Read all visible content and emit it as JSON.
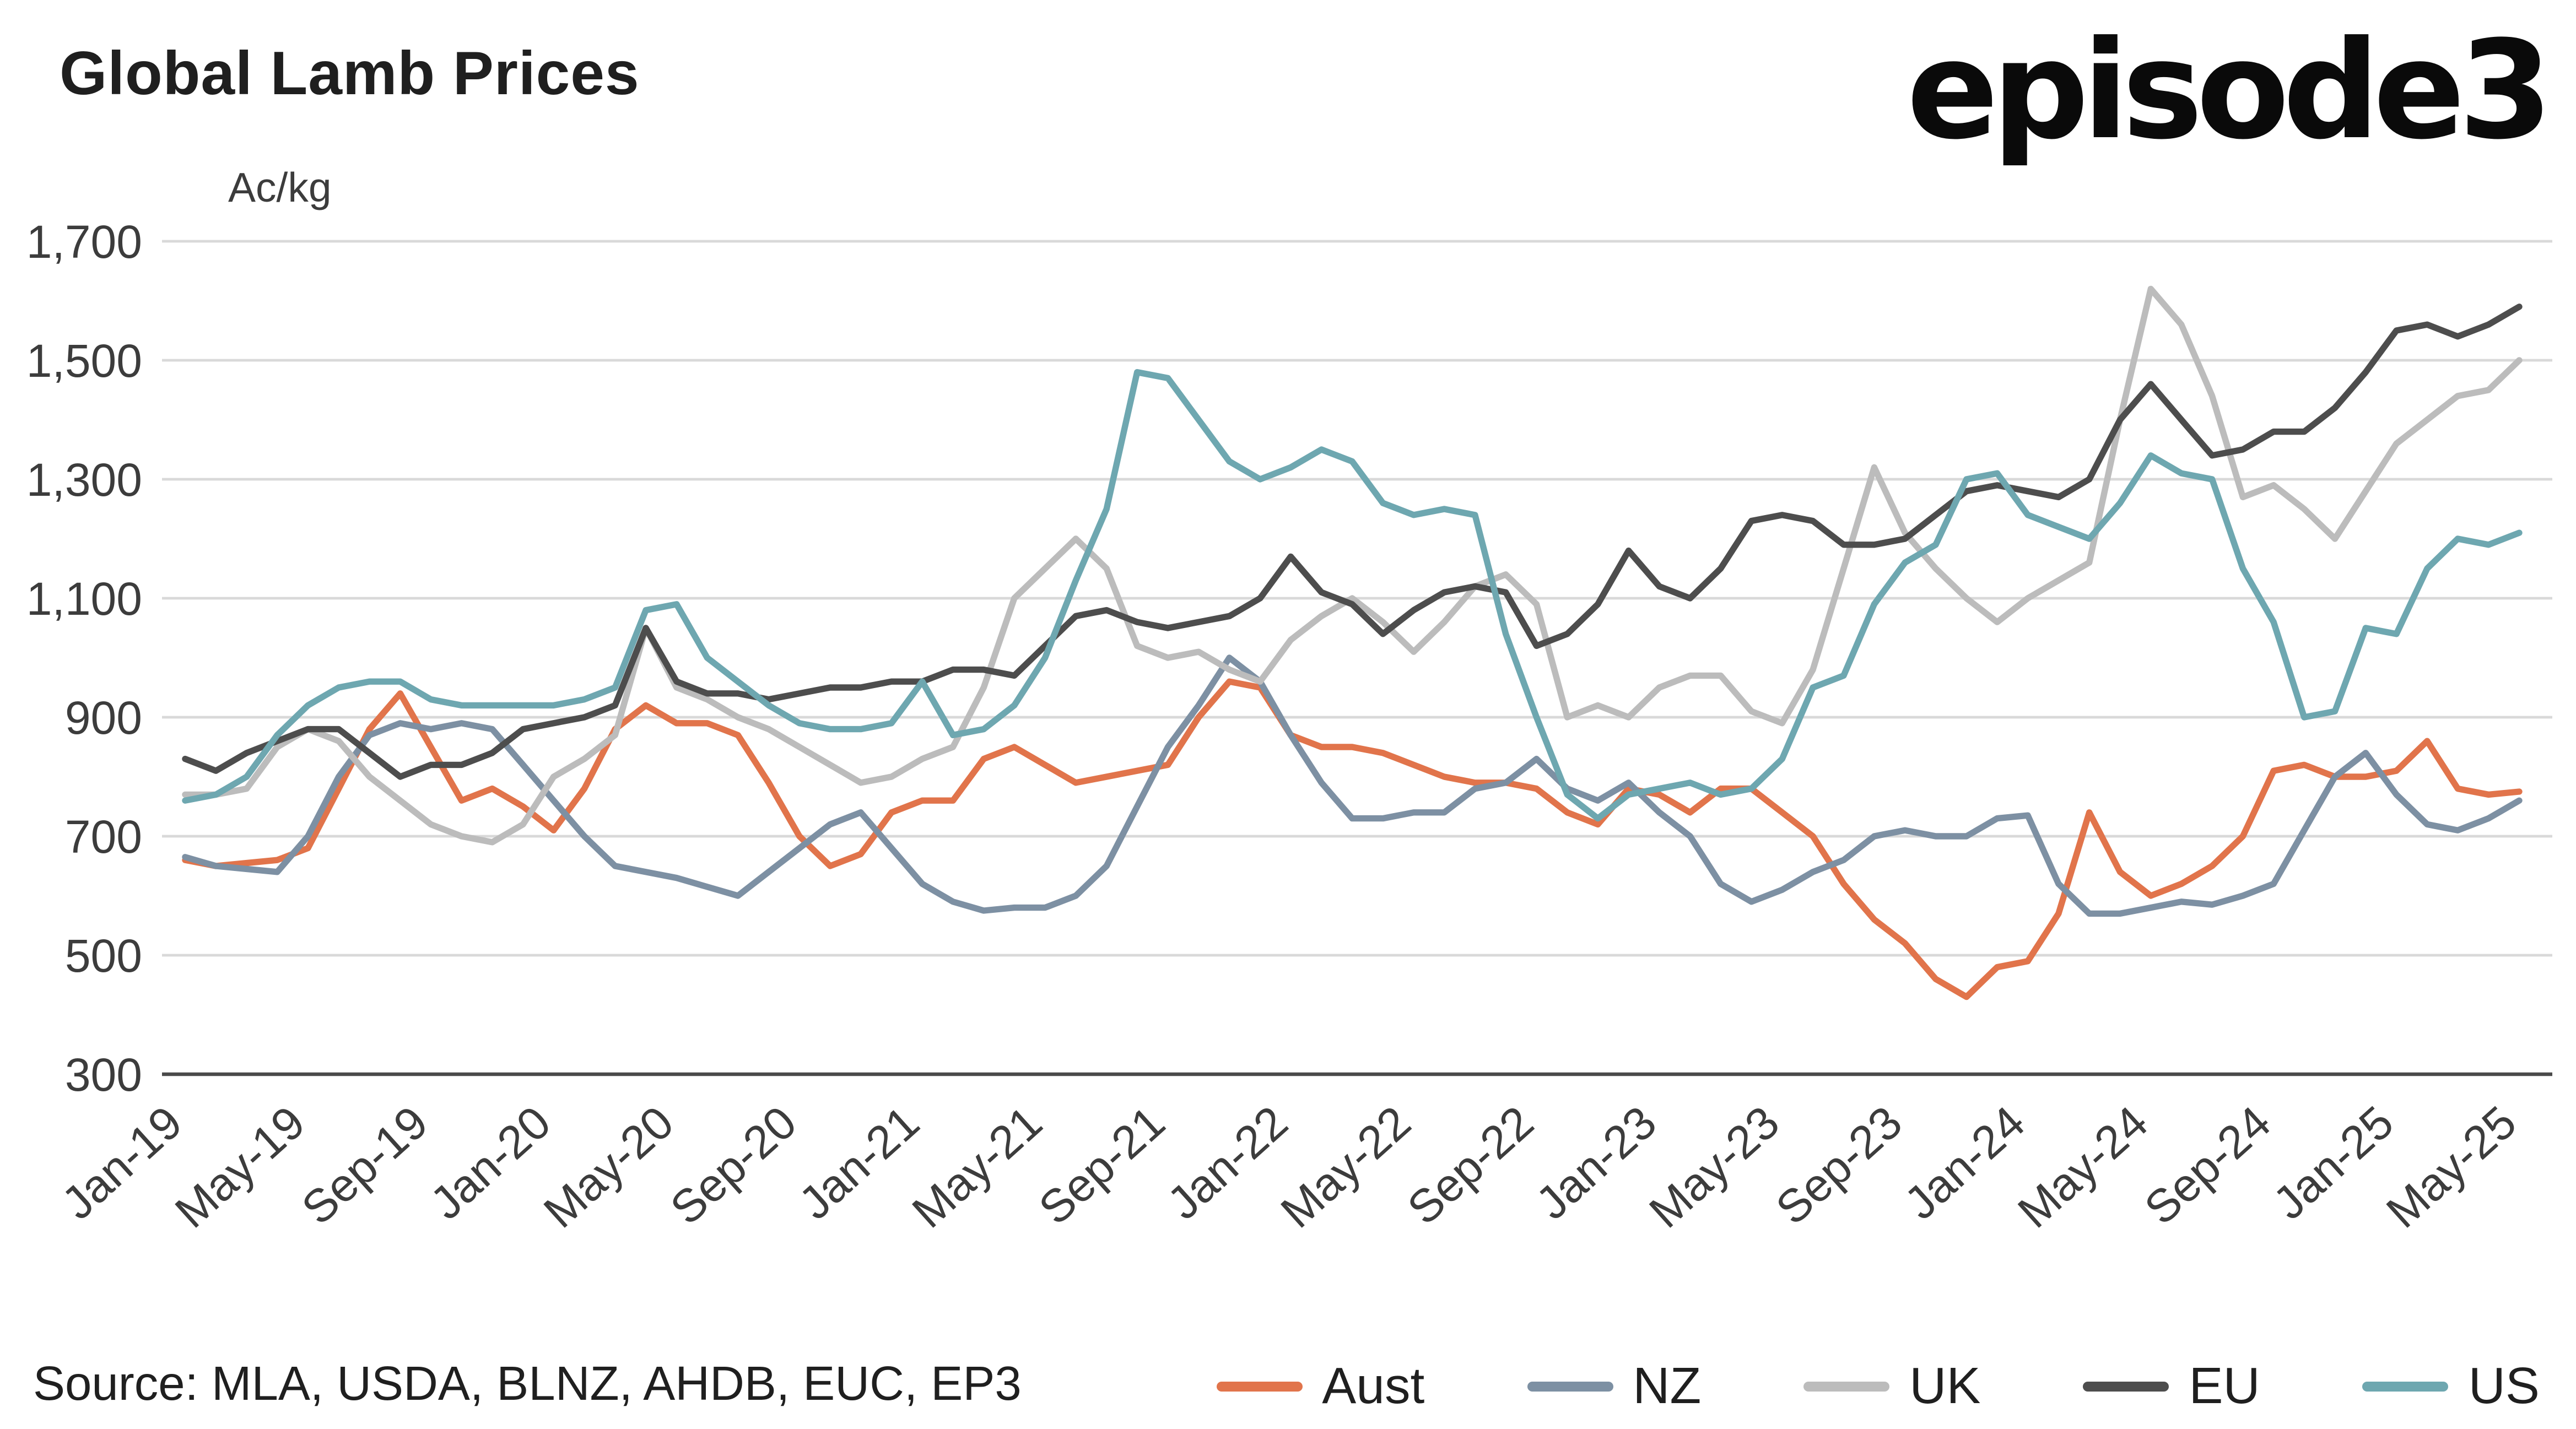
{
  "header": {
    "title": "Global Lamb Prices",
    "logo": "episode3"
  },
  "footer": {
    "source": "Source: MLA, USDA, BLNZ, AHDB, EUC, EP3"
  },
  "chart_data": {
    "type": "line",
    "title": "Global Lamb Prices",
    "ylabel": "Ac/kg",
    "ylim": [
      300,
      1700
    ],
    "yticks": [
      300,
      500,
      700,
      900,
      1100,
      1300,
      1500,
      1700
    ],
    "ytick_labels": [
      "300",
      "500",
      "700",
      "900",
      "1,100",
      "1,300",
      "1,500",
      "1,700"
    ],
    "grid": "horizontal",
    "legend_position": "bottom",
    "xtick_every": 4,
    "x_labels": [
      "Jan-19",
      "Feb-19",
      "Mar-19",
      "Apr-19",
      "May-19",
      "Jun-19",
      "Jul-19",
      "Aug-19",
      "Sep-19",
      "Oct-19",
      "Nov-19",
      "Dec-19",
      "Jan-20",
      "Feb-20",
      "Mar-20",
      "Apr-20",
      "May-20",
      "Jun-20",
      "Jul-20",
      "Aug-20",
      "Sep-20",
      "Oct-20",
      "Nov-20",
      "Dec-20",
      "Jan-21",
      "Feb-21",
      "Mar-21",
      "Apr-21",
      "May-21",
      "Jun-21",
      "Jul-21",
      "Aug-21",
      "Sep-21",
      "Oct-21",
      "Nov-21",
      "Dec-21",
      "Jan-22",
      "Feb-22",
      "Mar-22",
      "Apr-22",
      "May-22",
      "Jun-22",
      "Jul-22",
      "Aug-22",
      "Sep-22",
      "Oct-22",
      "Nov-22",
      "Dec-22",
      "Jan-23",
      "Feb-23",
      "Mar-23",
      "Apr-23",
      "May-23",
      "Jun-23",
      "Jul-23",
      "Aug-23",
      "Sep-23",
      "Oct-23",
      "Nov-23",
      "Dec-23",
      "Jan-24",
      "Feb-24",
      "Mar-24",
      "Apr-24",
      "May-24",
      "Jun-24",
      "Jul-24",
      "Aug-24",
      "Sep-24",
      "Oct-24",
      "Nov-24",
      "Dec-24",
      "Jan-25",
      "Feb-25",
      "Mar-25",
      "Apr-25",
      "May-25"
    ],
    "series": [
      {
        "name": "Aust",
        "color": "#E1744B",
        "values": [
          660,
          650,
          655,
          660,
          680,
          780,
          880,
          940,
          850,
          760,
          780,
          750,
          710,
          780,
          880,
          920,
          890,
          890,
          870,
          790,
          700,
          650,
          670,
          740,
          760,
          760,
          830,
          850,
          820,
          790,
          800,
          810,
          820,
          900,
          960,
          950,
          870,
          850,
          850,
          840,
          820,
          800,
          790,
          790,
          780,
          740,
          720,
          780,
          770,
          740,
          780,
          780,
          740,
          700,
          620,
          560,
          520,
          460,
          430,
          480,
          490,
          570,
          740,
          640,
          600,
          620,
          650,
          700,
          810,
          820,
          800,
          800,
          810,
          860,
          780,
          770,
          775
        ]
      },
      {
        "name": "NZ",
        "color": "#7D90A3",
        "values": [
          665,
          650,
          645,
          640,
          700,
          800,
          870,
          890,
          880,
          890,
          880,
          820,
          760,
          700,
          650,
          640,
          630,
          615,
          600,
          640,
          680,
          720,
          740,
          680,
          620,
          590,
          575,
          580,
          580,
          600,
          650,
          750,
          850,
          920,
          1000,
          960,
          870,
          790,
          730,
          730,
          740,
          740,
          780,
          790,
          830,
          780,
          760,
          790,
          740,
          700,
          620,
          590,
          610,
          640,
          660,
          700,
          710,
          700,
          700,
          730,
          735,
          620,
          570,
          570,
          580,
          590,
          585,
          600,
          620,
          710,
          800,
          840,
          770,
          720,
          710,
          730,
          760
        ]
      },
      {
        "name": "UK",
        "color": "#BCBCBC",
        "values": [
          770,
          770,
          780,
          850,
          880,
          860,
          800,
          760,
          720,
          700,
          690,
          720,
          800,
          830,
          870,
          1050,
          950,
          930,
          900,
          880,
          850,
          820,
          790,
          800,
          830,
          850,
          950,
          1100,
          1150,
          1200,
          1150,
          1020,
          1000,
          1010,
          980,
          960,
          1030,
          1070,
          1100,
          1060,
          1010,
          1060,
          1120,
          1140,
          1090,
          900,
          920,
          900,
          950,
          970,
          970,
          910,
          890,
          980,
          1150,
          1320,
          1210,
          1150,
          1100,
          1060,
          1100,
          1130,
          1160,
          1400,
          1620,
          1560,
          1440,
          1270,
          1290,
          1250,
          1200,
          1280,
          1360,
          1400,
          1440,
          1450,
          1500
        ]
      },
      {
        "name": "EU",
        "color": "#4D4D4D",
        "values": [
          830,
          810,
          840,
          860,
          880,
          880,
          840,
          800,
          820,
          820,
          840,
          880,
          890,
          900,
          920,
          1050,
          960,
          940,
          940,
          930,
          940,
          950,
          950,
          960,
          960,
          980,
          980,
          970,
          1020,
          1070,
          1080,
          1060,
          1050,
          1060,
          1070,
          1100,
          1170,
          1110,
          1090,
          1040,
          1080,
          1110,
          1120,
          1110,
          1020,
          1040,
          1090,
          1180,
          1120,
          1100,
          1150,
          1230,
          1240,
          1230,
          1190,
          1190,
          1200,
          1240,
          1280,
          1290,
          1280,
          1270,
          1300,
          1400,
          1460,
          1400,
          1340,
          1350,
          1380,
          1380,
          1420,
          1480,
          1550,
          1560,
          1540,
          1560,
          1590
        ]
      },
      {
        "name": "US",
        "color": "#6EA7B0",
        "values": [
          760,
          770,
          800,
          870,
          920,
          950,
          960,
          960,
          930,
          920,
          920,
          920,
          920,
          930,
          950,
          1080,
          1090,
          1000,
          960,
          920,
          890,
          880,
          880,
          890,
          960,
          870,
          880,
          920,
          1000,
          1130,
          1250,
          1480,
          1470,
          1400,
          1330,
          1300,
          1320,
          1350,
          1330,
          1260,
          1240,
          1250,
          1240,
          1040,
          900,
          770,
          730,
          770,
          780,
          790,
          770,
          780,
          830,
          950,
          970,
          1090,
          1160,
          1190,
          1300,
          1310,
          1240,
          1220,
          1200,
          1260,
          1340,
          1310,
          1300,
          1150,
          1060,
          900,
          910,
          1050,
          1040,
          1150,
          1200,
          1190,
          1210
        ]
      }
    ]
  }
}
